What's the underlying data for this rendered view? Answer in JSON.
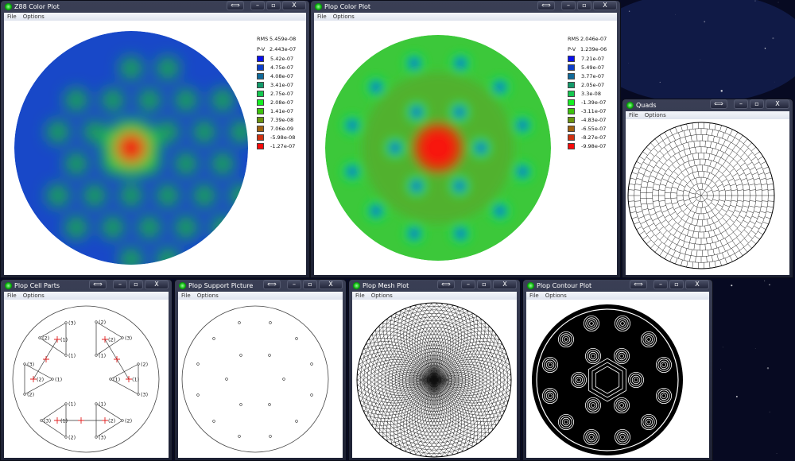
{
  "windows": {
    "z88": {
      "title": "Z88 Color Plot",
      "menu": [
        "File",
        "Options"
      ],
      "rms_label": "RMS",
      "rms": "5.459e-08",
      "pv_label": "P-V",
      "pv": "2.443e-07",
      "legend": [
        {
          "value": "5.42e-07",
          "color": "#0a10f0"
        },
        {
          "value": "4.75e-07",
          "color": "#0c3fcc"
        },
        {
          "value": "4.08e-07",
          "color": "#106a9a"
        },
        {
          "value": "3.41e-07",
          "color": "#129a6a"
        },
        {
          "value": "2.75e-07",
          "color": "#14c850"
        },
        {
          "value": "2.08e-07",
          "color": "#14f020"
        },
        {
          "value": "1.41e-07",
          "color": "#3cc40c"
        },
        {
          "value": "7.39e-08",
          "color": "#6a9410"
        },
        {
          "value": "7.06e-09",
          "color": "#a06010"
        },
        {
          "value": "-5.98e-08",
          "color": "#d03010"
        },
        {
          "value": "-1.27e-07",
          "color": "#f80a0a"
        }
      ]
    },
    "plop_color": {
      "title": "Plop Color Plot",
      "menu": [
        "File",
        "Options"
      ],
      "rms_label": "RMS",
      "rms": "2.046e-07",
      "pv_label": "P-V",
      "pv": "1.239e-06",
      "legend": [
        {
          "value": "7.21e-07",
          "color": "#0a10f0"
        },
        {
          "value": "5.49e-07",
          "color": "#0c3fcc"
        },
        {
          "value": "3.77e-07",
          "color": "#106a9a"
        },
        {
          "value": "2.05e-07",
          "color": "#129a6a"
        },
        {
          "value": "3.3e-08",
          "color": "#14c850"
        },
        {
          "value": "-1.39e-07",
          "color": "#14f020"
        },
        {
          "value": "-3.11e-07",
          "color": "#3cc40c"
        },
        {
          "value": "-4.83e-07",
          "color": "#6a9410"
        },
        {
          "value": "-6.55e-07",
          "color": "#a06010"
        },
        {
          "value": "-8.27e-07",
          "color": "#d03010"
        },
        {
          "value": "-9.98e-07",
          "color": "#f80a0a"
        }
      ]
    },
    "quads": {
      "title": "Quads",
      "menu": [
        "File",
        "Options"
      ]
    },
    "cell_parts": {
      "title": "Plop Cell Parts",
      "menu": [
        "File",
        "Options"
      ],
      "triangles": [
        [
          "(3)",
          "(2)",
          "(1)"
        ],
        [
          "(2)",
          "(3)",
          "(1)"
        ],
        [
          "(3)",
          "(1)",
          "(2)"
        ],
        [
          "(2)",
          "(1)",
          "(3)"
        ],
        [
          "(1)",
          "(3)",
          "(2)"
        ],
        [
          "(1)",
          "(2)",
          "(3)"
        ]
      ],
      "cross_labels": [
        "(1)",
        "(2)",
        "(2)",
        "(1)",
        "(1)",
        "(2)"
      ]
    },
    "support": {
      "title": "Plop Support Picture",
      "menu": [
        "File",
        "Options"
      ]
    },
    "mesh": {
      "title": "Plop Mesh Plot",
      "menu": [
        "File",
        "Options"
      ]
    },
    "contour": {
      "title": "Plop Contour Plot",
      "menu": [
        "File",
        "Options"
      ]
    }
  },
  "caption_buttons": {
    "size": "⟺",
    "minimize": "–",
    "maximize": "▫",
    "close": "X"
  }
}
